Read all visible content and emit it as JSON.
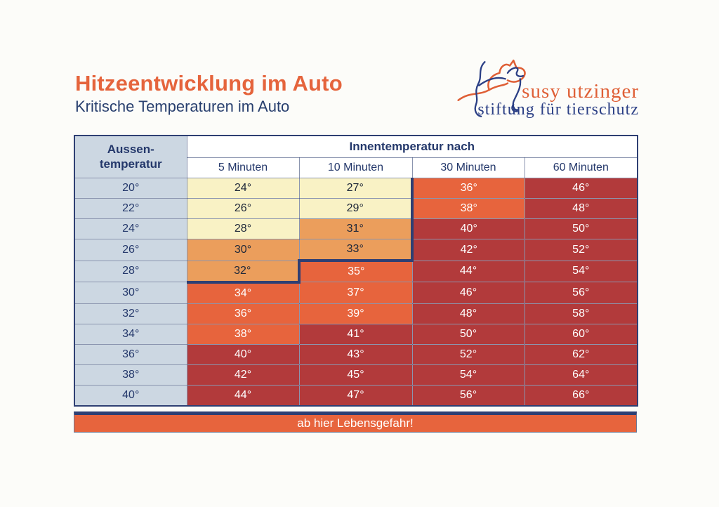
{
  "page": {
    "title": "Hitzeentwicklung im Auto",
    "subtitle": "Kritische Temperaturen im Auto"
  },
  "logo": {
    "line1": "susy utzinger",
    "line2": "stiftung für tierschutz"
  },
  "table": {
    "corner_header_line1": "Aussen-",
    "corner_header_line2": "temperatur",
    "group_header": "Innentemperatur nach",
    "col_headers": [
      "5 Minuten",
      "10 Minuten",
      "30 Minuten",
      "60 Minuten"
    ],
    "rows": [
      {
        "outside": "20°",
        "cells": [
          {
            "value": "24°",
            "level": "yellow"
          },
          {
            "value": "27°",
            "level": "yellow"
          },
          {
            "value": "36°",
            "level": "orange",
            "thick": [
              "left"
            ]
          },
          {
            "value": "46°",
            "level": "red"
          }
        ]
      },
      {
        "outside": "22°",
        "cells": [
          {
            "value": "26°",
            "level": "yellow"
          },
          {
            "value": "29°",
            "level": "yellow"
          },
          {
            "value": "38°",
            "level": "orange",
            "thick": [
              "left"
            ]
          },
          {
            "value": "48°",
            "level": "red"
          }
        ]
      },
      {
        "outside": "24°",
        "cells": [
          {
            "value": "28°",
            "level": "yellow"
          },
          {
            "value": "31°",
            "level": "tan"
          },
          {
            "value": "40°",
            "level": "red",
            "thick": [
              "left"
            ]
          },
          {
            "value": "50°",
            "level": "red"
          }
        ]
      },
      {
        "outside": "26°",
        "cells": [
          {
            "value": "30°",
            "level": "tan"
          },
          {
            "value": "33°",
            "level": "tan"
          },
          {
            "value": "42°",
            "level": "red",
            "thick": [
              "left"
            ]
          },
          {
            "value": "52°",
            "level": "red"
          }
        ]
      },
      {
        "outside": "28°",
        "cells": [
          {
            "value": "32°",
            "level": "tan"
          },
          {
            "value": "35°",
            "level": "orange",
            "thick": [
              "left",
              "top"
            ]
          },
          {
            "value": "44°",
            "level": "red"
          },
          {
            "value": "54°",
            "level": "red"
          }
        ]
      },
      {
        "outside": "30°",
        "cells": [
          {
            "value": "34°",
            "level": "orange",
            "thick": [
              "top"
            ]
          },
          {
            "value": "37°",
            "level": "orange"
          },
          {
            "value": "46°",
            "level": "red"
          },
          {
            "value": "56°",
            "level": "red"
          }
        ]
      },
      {
        "outside": "32°",
        "cells": [
          {
            "value": "36°",
            "level": "orange"
          },
          {
            "value": "39°",
            "level": "orange"
          },
          {
            "value": "48°",
            "level": "red"
          },
          {
            "value": "58°",
            "level": "red"
          }
        ]
      },
      {
        "outside": "34°",
        "cells": [
          {
            "value": "38°",
            "level": "orange"
          },
          {
            "value": "41°",
            "level": "red"
          },
          {
            "value": "50°",
            "level": "red"
          },
          {
            "value": "60°",
            "level": "red"
          }
        ]
      },
      {
        "outside": "36°",
        "cells": [
          {
            "value": "40°",
            "level": "red"
          },
          {
            "value": "43°",
            "level": "red"
          },
          {
            "value": "52°",
            "level": "red"
          },
          {
            "value": "62°",
            "level": "red"
          }
        ]
      },
      {
        "outside": "38°",
        "cells": [
          {
            "value": "42°",
            "level": "red"
          },
          {
            "value": "45°",
            "level": "red"
          },
          {
            "value": "54°",
            "level": "red"
          },
          {
            "value": "64°",
            "level": "red"
          }
        ]
      },
      {
        "outside": "40°",
        "cells": [
          {
            "value": "44°",
            "level": "red"
          },
          {
            "value": "47°",
            "level": "red"
          },
          {
            "value": "56°",
            "level": "red"
          },
          {
            "value": "66°",
            "level": "red"
          }
        ]
      }
    ]
  },
  "footer": {
    "warning": "ab hier Lebensgefahr!"
  },
  "colors": {
    "title_orange": "#e5643c",
    "navy": "#29406f",
    "cell_yellow": "#f9f2c5",
    "cell_tan": "#eb9e5c",
    "cell_orange": "#e7643d",
    "cell_red": "#b23a3b",
    "row_header_blue": "#ccd7e2",
    "zone_border_navy": "#2e3f73",
    "logo_orange": "#df5f36",
    "logo_blue": "#2b3f85"
  },
  "chart_data": {
    "type": "table",
    "title": "Hitzeentwicklung im Auto",
    "subtitle": "Kritische Temperaturen im Auto",
    "row_axis_label": "Aussentemperatur",
    "col_axis_label": "Innentemperatur nach",
    "columns": [
      "5 Minuten",
      "10 Minuten",
      "30 Minuten",
      "60 Minuten"
    ],
    "outside_temperatures": [
      20,
      22,
      24,
      26,
      28,
      30,
      32,
      34,
      36,
      38,
      40
    ],
    "values": [
      [
        24,
        27,
        36,
        46
      ],
      [
        26,
        29,
        38,
        48
      ],
      [
        28,
        31,
        40,
        50
      ],
      [
        30,
        33,
        42,
        52
      ],
      [
        32,
        35,
        44,
        54
      ],
      [
        34,
        37,
        46,
        56
      ],
      [
        36,
        39,
        48,
        58
      ],
      [
        38,
        41,
        50,
        60
      ],
      [
        40,
        43,
        52,
        62
      ],
      [
        42,
        45,
        54,
        64
      ],
      [
        44,
        47,
        56,
        66
      ]
    ],
    "severity_levels": [
      [
        "yellow",
        "yellow",
        "orange",
        "red"
      ],
      [
        "yellow",
        "yellow",
        "orange",
        "red"
      ],
      [
        "yellow",
        "tan",
        "red",
        "red"
      ],
      [
        "tan",
        "tan",
        "red",
        "red"
      ],
      [
        "tan",
        "orange",
        "red",
        "red"
      ],
      [
        "orange",
        "orange",
        "red",
        "red"
      ],
      [
        "orange",
        "orange",
        "red",
        "red"
      ],
      [
        "orange",
        "red",
        "red",
        "red"
      ],
      [
        "red",
        "red",
        "red",
        "red"
      ],
      [
        "red",
        "red",
        "red",
        "red"
      ],
      [
        "red",
        "red",
        "red",
        "red"
      ]
    ],
    "danger_note": "ab hier Lebensgefahr!"
  }
}
